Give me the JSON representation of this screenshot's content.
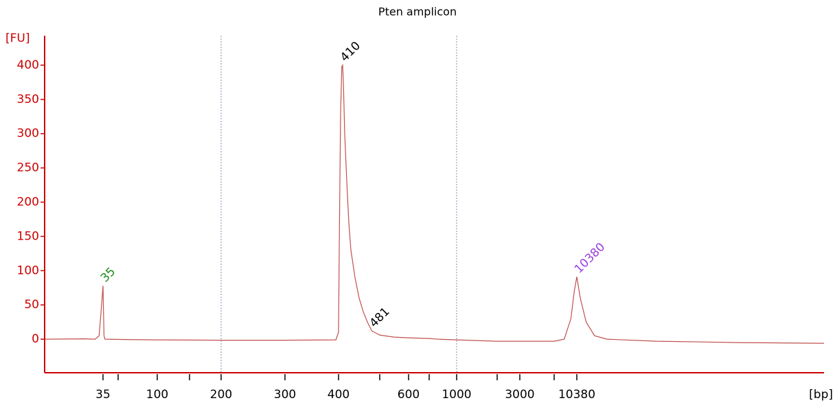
{
  "chart_data": {
    "type": "line",
    "title": "Pten amplicon",
    "ylabel": "[FU]",
    "xlabel": "[bp]",
    "color": "#c0504d",
    "axis_color": "#cc0000",
    "ylim": [
      -49,
      443
    ],
    "yticks": [
      0,
      50,
      100,
      150,
      200,
      250,
      300,
      350,
      400
    ],
    "xlim": [
      20,
      40000
    ],
    "xticks": [
      35,
      100,
      200,
      300,
      400,
      600,
      1000,
      3000,
      10380
    ],
    "xminorticks": [
      50,
      150,
      500,
      700,
      2000,
      7000
    ],
    "xgrid": [
      200,
      1000
    ],
    "x": [
      20,
      30,
      33,
      34,
      34.5,
      35,
      35.5,
      36,
      37,
      60,
      100,
      200,
      300,
      395,
      400,
      402,
      405,
      408,
      410,
      412,
      415,
      420,
      425,
      430,
      440,
      450,
      460,
      470,
      481,
      500,
      550,
      600,
      700,
      800,
      1000,
      1500,
      2000,
      3000,
      5000,
      7000,
      8500,
      9500,
      10000,
      10380,
      10800,
      11500,
      12500,
      14000,
      20000,
      30000,
      40000
    ],
    "values": [
      0,
      0.5,
      0,
      5,
      40,
      78,
      40,
      5,
      0,
      -0.5,
      -1,
      -1.5,
      -1.5,
      -1,
      10,
      150,
      330,
      398,
      400,
      370,
      300,
      230,
      170,
      130,
      90,
      60,
      40,
      25,
      12,
      6,
      3,
      2,
      1,
      0,
      -1,
      -2,
      -3,
      -3,
      -3,
      -3,
      0,
      30,
      70,
      91,
      60,
      25,
      5,
      0,
      -3,
      -5,
      -6
    ],
    "peaks": [
      {
        "bp": 35,
        "fu": 78,
        "color": "#1a8a1a"
      },
      {
        "bp": 410,
        "fu": 400,
        "color": "#000000"
      },
      {
        "bp": 481,
        "fu": 12,
        "color": "#000000"
      },
      {
        "bp": 10380,
        "fu": 91,
        "color": "#9b3fe0"
      }
    ]
  }
}
